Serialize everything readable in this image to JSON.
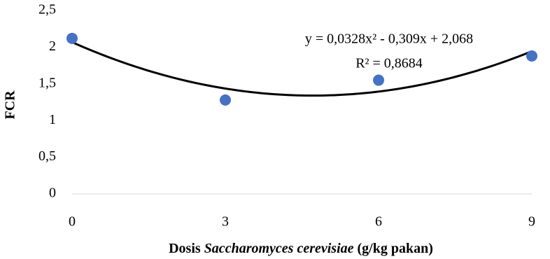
{
  "chart_data": {
    "type": "scatter",
    "y_label": "FCR",
    "x_label_parts": [
      "Dosis ",
      "Saccharomyces cerevisiae",
      " (g/kg pakan)"
    ],
    "x": [
      0,
      3,
      6,
      9
    ],
    "series": [
      {
        "color": "#4472c4",
        "values": [
          2.12,
          1.28,
          1.55,
          1.88
        ]
      }
    ],
    "xlim": [
      0,
      9
    ],
    "xticks": [
      0,
      3,
      6,
      9
    ],
    "ylim": [
      0,
      2.5
    ],
    "yticks": [
      0,
      {
        "value": 0.5,
        "label": "0,5"
      },
      1,
      {
        "value": 1.5,
        "label": "1,5"
      },
      2,
      {
        "value": 2.5,
        "label": "2,5"
      }
    ],
    "trendline": {
      "type": "polynomial",
      "color": "#000000",
      "coefficients": [
        2.068,
        -0.309,
        0.0328
      ]
    },
    "annotations": [
      "y = 0,0328x² - 0,309x + 2,068",
      "R² = 0,8684"
    ]
  }
}
